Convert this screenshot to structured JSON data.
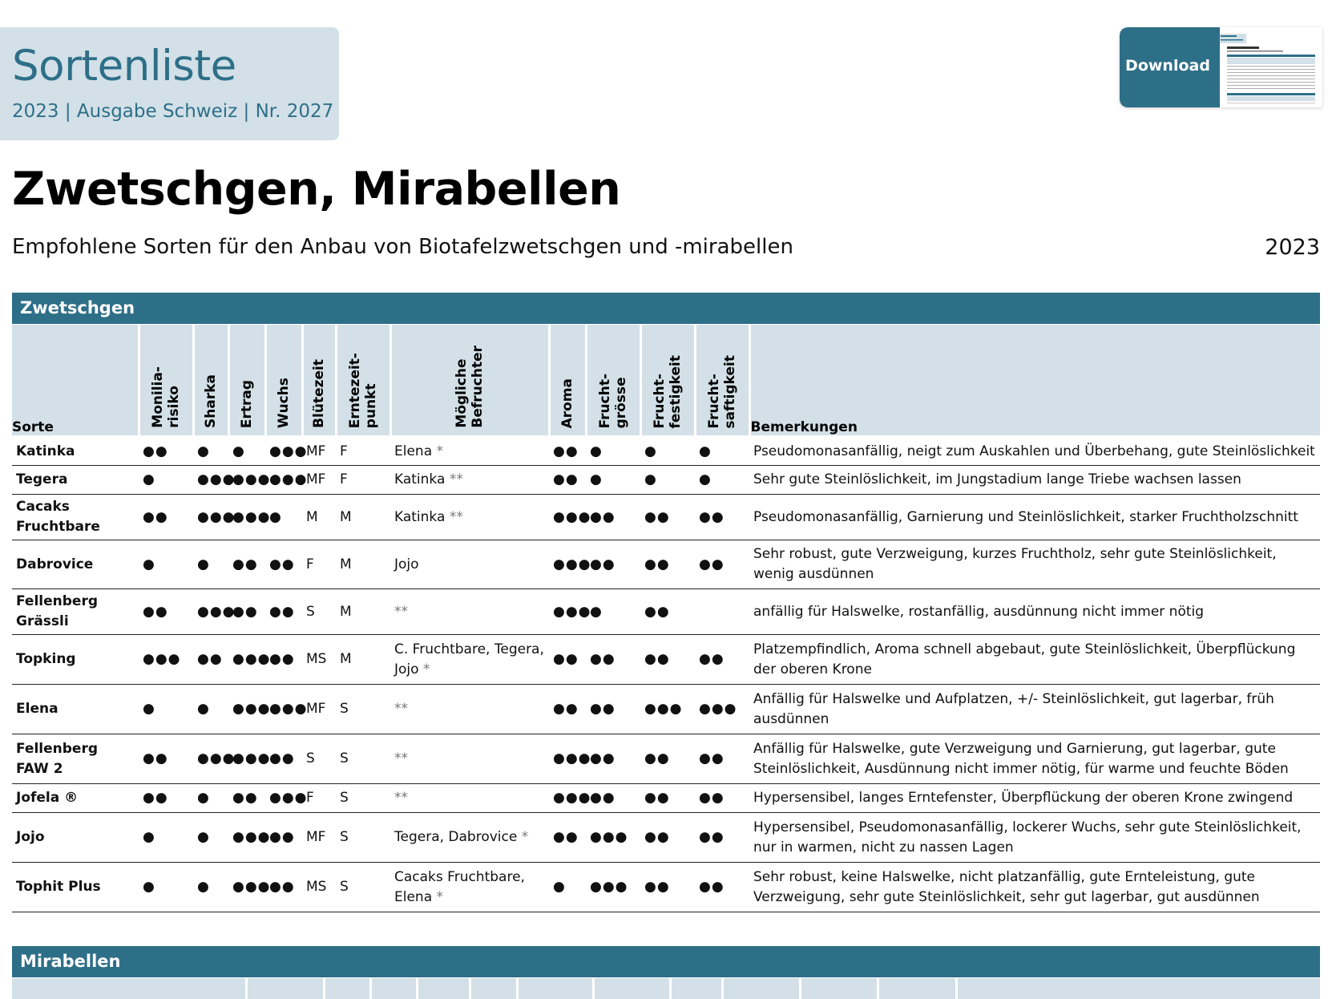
{
  "header": {
    "title": "Sortenliste",
    "subtitle": "2023 | Ausgabe Schweiz | Nr. 2027",
    "download_label": "Download"
  },
  "document": {
    "title": "Zwetschgen, Mirabellen",
    "subtitle": "Empfohlene Sorten für den Anbau von Biotafelzwetschgen und -mirabellen",
    "year": "2023"
  },
  "sections": {
    "zwetschgen": "Zwetschgen",
    "mirabellen": "Mirabellen"
  },
  "columns": [
    "Sorte",
    "Monilia-\nrisiko",
    "Sharka",
    "Ertrag",
    "Wuchs",
    "Blütezeit",
    "Erntezeit-\npunkt",
    "Mögliche\nBefruchter",
    "Aroma",
    "Frucht-\ngrösse",
    "Frucht-\nfestigkeit",
    "Frucht-\nsaftigkeit",
    "Bemerkungen"
  ],
  "rows": [
    {
      "sorte": "Katinka",
      "monilia": "●●",
      "sharka": "●",
      "ertrag": "●",
      "wuchs": "●●●",
      "bluete": "MF",
      "ernte": "F",
      "befr": "Elena",
      "befr_ast": "*",
      "aroma": "●●",
      "groesse": "●",
      "festigkeit": "●",
      "saftigkeit": "●",
      "bemerkung": "Pseudomonasanfällig, neigt zum Auskahlen und Überbehang, gute Steinlöslichkeit"
    },
    {
      "sorte": "Tegera",
      "monilia": "●",
      "sharka": "●●●",
      "ertrag": "●●●",
      "wuchs": "●●●",
      "bluete": "MF",
      "ernte": "F",
      "befr": "Katinka",
      "befr_ast": "**",
      "aroma": "●●",
      "groesse": "●",
      "festigkeit": "●",
      "saftigkeit": "●",
      "bemerkung": "Sehr gute Steinlöslichkeit, im Jungstadium lange Triebe wachsen lassen"
    },
    {
      "sorte": "Cacaks Fruchtbare",
      "monilia": "●●",
      "sharka": "●●●",
      "ertrag": "●●●",
      "wuchs": "●",
      "bluete": "M",
      "ernte": "M",
      "befr": "Katinka",
      "befr_ast": "**",
      "aroma": "●●●",
      "groesse": "●●",
      "festigkeit": "●●",
      "saftigkeit": "●●",
      "bemerkung": "Pseudomonasanfällig, Garnierung und Steinlöslichkeit, starker Fruchtholzschnitt"
    },
    {
      "sorte": "Dabrovice",
      "monilia": "●",
      "sharka": "●",
      "ertrag": "●●",
      "wuchs": "●●",
      "bluete": "F",
      "ernte": "M",
      "befr": "Jojo",
      "befr_ast": "",
      "aroma": "●●●",
      "groesse": "●●",
      "festigkeit": "●●",
      "saftigkeit": "●●",
      "bemerkung": "Sehr robust, gute Verzweigung, kurzes Fruchtholz, sehr gute Steinlöslichkeit, wenig ausdünnen"
    },
    {
      "sorte": "Fellenberg Grässli",
      "monilia": "●●",
      "sharka": "●●●",
      "ertrag": "●●",
      "wuchs": "●●",
      "bluete": "S",
      "ernte": "M",
      "befr": "",
      "befr_ast": "**",
      "aroma": "●●●",
      "groesse": "●",
      "festigkeit": "●●",
      "saftigkeit": "",
      "bemerkung": "anfällig für Halswelke, rostanfällig, ausdünnung nicht immer nötig"
    },
    {
      "sorte": "Topking",
      "monilia": "●●●",
      "sharka": "●●",
      "ertrag": "●●●",
      "wuchs": "●●",
      "bluete": "MS",
      "ernte": "M",
      "befr": "C. Fruchtbare, Tegera, Jojo",
      "befr_ast": "*",
      "aroma": "●●",
      "groesse": "●●",
      "festigkeit": "●●",
      "saftigkeit": "●●",
      "bemerkung": "Platzempfindlich, Aroma schnell abgebaut, gute Steinlöslichkeit, Überpflückung der oberen Krone"
    },
    {
      "sorte": "Elena",
      "monilia": "●",
      "sharka": "●",
      "ertrag": "●●●",
      "wuchs": "●●●",
      "bluete": "MF",
      "ernte": "S",
      "befr": "",
      "befr_ast": "**",
      "aroma": "●●",
      "groesse": "●●",
      "festigkeit": "●●●",
      "saftigkeit": "●●●",
      "bemerkung": "Anfällig für Halswelke und Aufplatzen, +/- Steinlöslichkeit, gut lagerbar, früh ausdünnen"
    },
    {
      "sorte": "Fellenberg FAW 2",
      "monilia": "●●",
      "sharka": "●●●",
      "ertrag": "●●●",
      "wuchs": "●●",
      "bluete": "S",
      "ernte": "S",
      "befr": "",
      "befr_ast": "**",
      "aroma": "●●●",
      "groesse": "●●",
      "festigkeit": "●●",
      "saftigkeit": "●●",
      "bemerkung": "Anfällig für Halswelke, gute Verzweigung und Garnierung, gut lagerbar, gute Steinlöslichkeit, Ausdünnung nicht immer nötig, für warme und feuchte Böden"
    },
    {
      "sorte": "Jofela ®",
      "monilia": "●●",
      "sharka": "●",
      "ertrag": "●●",
      "wuchs": "●●●",
      "bluete": "F",
      "ernte": "S",
      "befr": "",
      "befr_ast": "**",
      "aroma": "●●●",
      "groesse": "●●",
      "festigkeit": "●●",
      "saftigkeit": "●●",
      "bemerkung": "Hypersensibel, langes Erntefenster, Überpflückung der oberen Krone zwingend"
    },
    {
      "sorte": "Jojo",
      "monilia": "●",
      "sharka": "●",
      "ertrag": "●●●",
      "wuchs": "●●",
      "bluete": "MF",
      "ernte": "S",
      "befr": "Tegera, Dabrovice",
      "befr_ast": "*",
      "aroma": "●●",
      "groesse": "●●●",
      "festigkeit": "●●",
      "saftigkeit": "●●",
      "bemerkung": "Hypersensibel, Pseudomonasanfällig, lockerer Wuchs, sehr gute Steinlöslichkeit, nur in warmen, nicht zu nassen Lagen"
    },
    {
      "sorte": "Tophit Plus",
      "monilia": "●",
      "sharka": "●",
      "ertrag": "●●●",
      "wuchs": "●●",
      "bluete": "MS",
      "ernte": "S",
      "befr": "Cacaks Fruchtbare, Elena",
      "befr_ast": "*",
      "aroma": "●",
      "groesse": "●●●",
      "festigkeit": "●●",
      "saftigkeit": "●●",
      "bemerkung": "Sehr robust, keine Halswelke, nicht platzanfällig, gute Ernteleistung, gute Verzweigung, sehr gute Steinlöslichkeit, sehr gut lagerbar, gut ausdünnen"
    }
  ],
  "colors": {
    "accent": "#2e6f88",
    "header_bg": "#d3e0e8"
  }
}
